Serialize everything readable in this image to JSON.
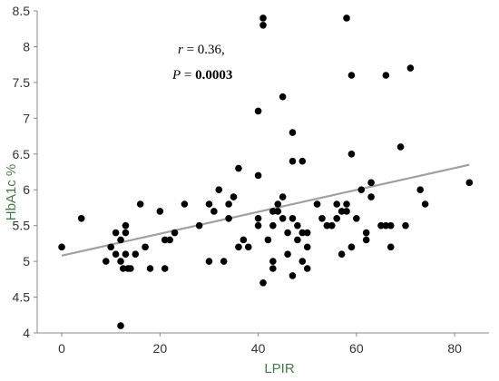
{
  "chart_data": {
    "type": "scatter",
    "title": "",
    "xlabel": "LPIR",
    "ylabel": "HbA1c %",
    "xlim": [
      -5,
      87
    ],
    "ylim": [
      4,
      8.5
    ],
    "xticks": [
      0,
      20,
      40,
      60,
      80
    ],
    "yticks": [
      4,
      4.5,
      5,
      5.5,
      6,
      6.5,
      7,
      7.5,
      8,
      8.5
    ],
    "tick_labels_x": [
      "0",
      "20",
      "40",
      "60",
      "80"
    ],
    "tick_labels_y": [
      "4",
      "4.5",
      "5",
      "5.5",
      "6",
      "6.5",
      "7",
      "7.5",
      "8",
      "8.5"
    ],
    "grid": false,
    "colors": {
      "points": "#000000",
      "trendline": "#a0a0a0",
      "axis_title": "#4a7a4a"
    },
    "annotation": {
      "r_label": "r",
      "r_value": " = 0.36,",
      "p_label": "P",
      "p_eq": " = ",
      "p_value": "0.0003"
    },
    "trendline": {
      "x": [
        0,
        83
      ],
      "y": [
        5.08,
        6.35
      ]
    },
    "points": [
      [
        0,
        5.2
      ],
      [
        4,
        5.6
      ],
      [
        9,
        5.0
      ],
      [
        10,
        5.2
      ],
      [
        11,
        5.4
      ],
      [
        11,
        5.1
      ],
      [
        12,
        5.3
      ],
      [
        12,
        5.0
      ],
      [
        12.5,
        4.9
      ],
      [
        13,
        5.5
      ],
      [
        13,
        5.4
      ],
      [
        13,
        5.1
      ],
      [
        13.5,
        4.9
      ],
      [
        14,
        4.9
      ],
      [
        15,
        5.1
      ],
      [
        16,
        5.8
      ],
      [
        17,
        5.2
      ],
      [
        18,
        4.9
      ],
      [
        20,
        5.7
      ],
      [
        21,
        4.9
      ],
      [
        21,
        5.3
      ],
      [
        22,
        5.3
      ],
      [
        23,
        5.4
      ],
      [
        25,
        5.8
      ],
      [
        28,
        5.5
      ],
      [
        30,
        5.0
      ],
      [
        30,
        5.8
      ],
      [
        31,
        5.7
      ],
      [
        32,
        6.0
      ],
      [
        33,
        5.0
      ],
      [
        34,
        5.6
      ],
      [
        34,
        5.8
      ],
      [
        35,
        5.9
      ],
      [
        36,
        6.3
      ],
      [
        36,
        5.2
      ],
      [
        37,
        5.3
      ],
      [
        38,
        5.2
      ],
      [
        40,
        5.5
      ],
      [
        40,
        5.6
      ],
      [
        40,
        6.2
      ],
      [
        40,
        7.1
      ],
      [
        41,
        8.4
      ],
      [
        41,
        8.3
      ],
      [
        41,
        4.7
      ],
      [
        42,
        5.3
      ],
      [
        43,
        5.0
      ],
      [
        43,
        4.9
      ],
      [
        43,
        5.5
      ],
      [
        43,
        5.7
      ],
      [
        44,
        5.7
      ],
      [
        44,
        5.8
      ],
      [
        45,
        5.6
      ],
      [
        45,
        7.3
      ],
      [
        45,
        5.9
      ],
      [
        46,
        5.4
      ],
      [
        46,
        5.1
      ],
      [
        47,
        4.8
      ],
      [
        47,
        6.8
      ],
      [
        47,
        6.4
      ],
      [
        47,
        5.6
      ],
      [
        48,
        5.5
      ],
      [
        48,
        5.3
      ],
      [
        49,
        6.4
      ],
      [
        49,
        5.4
      ],
      [
        49,
        5.0
      ],
      [
        50,
        5.2
      ],
      [
        50,
        5.4
      ],
      [
        50,
        4.9
      ],
      [
        52,
        5.8
      ],
      [
        52,
        5.8
      ],
      [
        53,
        5.6
      ],
      [
        54,
        5.5
      ],
      [
        55,
        5.5
      ],
      [
        56,
        5.8
      ],
      [
        56,
        5.6
      ],
      [
        57,
        5.7
      ],
      [
        57,
        5.1
      ],
      [
        58,
        5.8
      ],
      [
        58,
        8.4
      ],
      [
        58,
        5.7
      ],
      [
        59,
        6.5
      ],
      [
        59,
        7.6
      ],
      [
        59,
        5.2
      ],
      [
        60,
        5.6
      ],
      [
        61,
        6.0
      ],
      [
        62,
        5.4
      ],
      [
        62,
        5.3
      ],
      [
        63,
        6.1
      ],
      [
        63,
        5.9
      ],
      [
        65,
        5.5
      ],
      [
        66,
        7.6
      ],
      [
        66,
        5.5
      ],
      [
        67,
        5.5
      ],
      [
        67,
        5.2
      ],
      [
        69,
        6.6
      ],
      [
        70,
        5.5
      ],
      [
        71,
        7.7
      ],
      [
        73,
        6.0
      ],
      [
        74,
        5.8
      ],
      [
        83,
        6.1
      ],
      [
        12,
        4.1
      ]
    ]
  }
}
